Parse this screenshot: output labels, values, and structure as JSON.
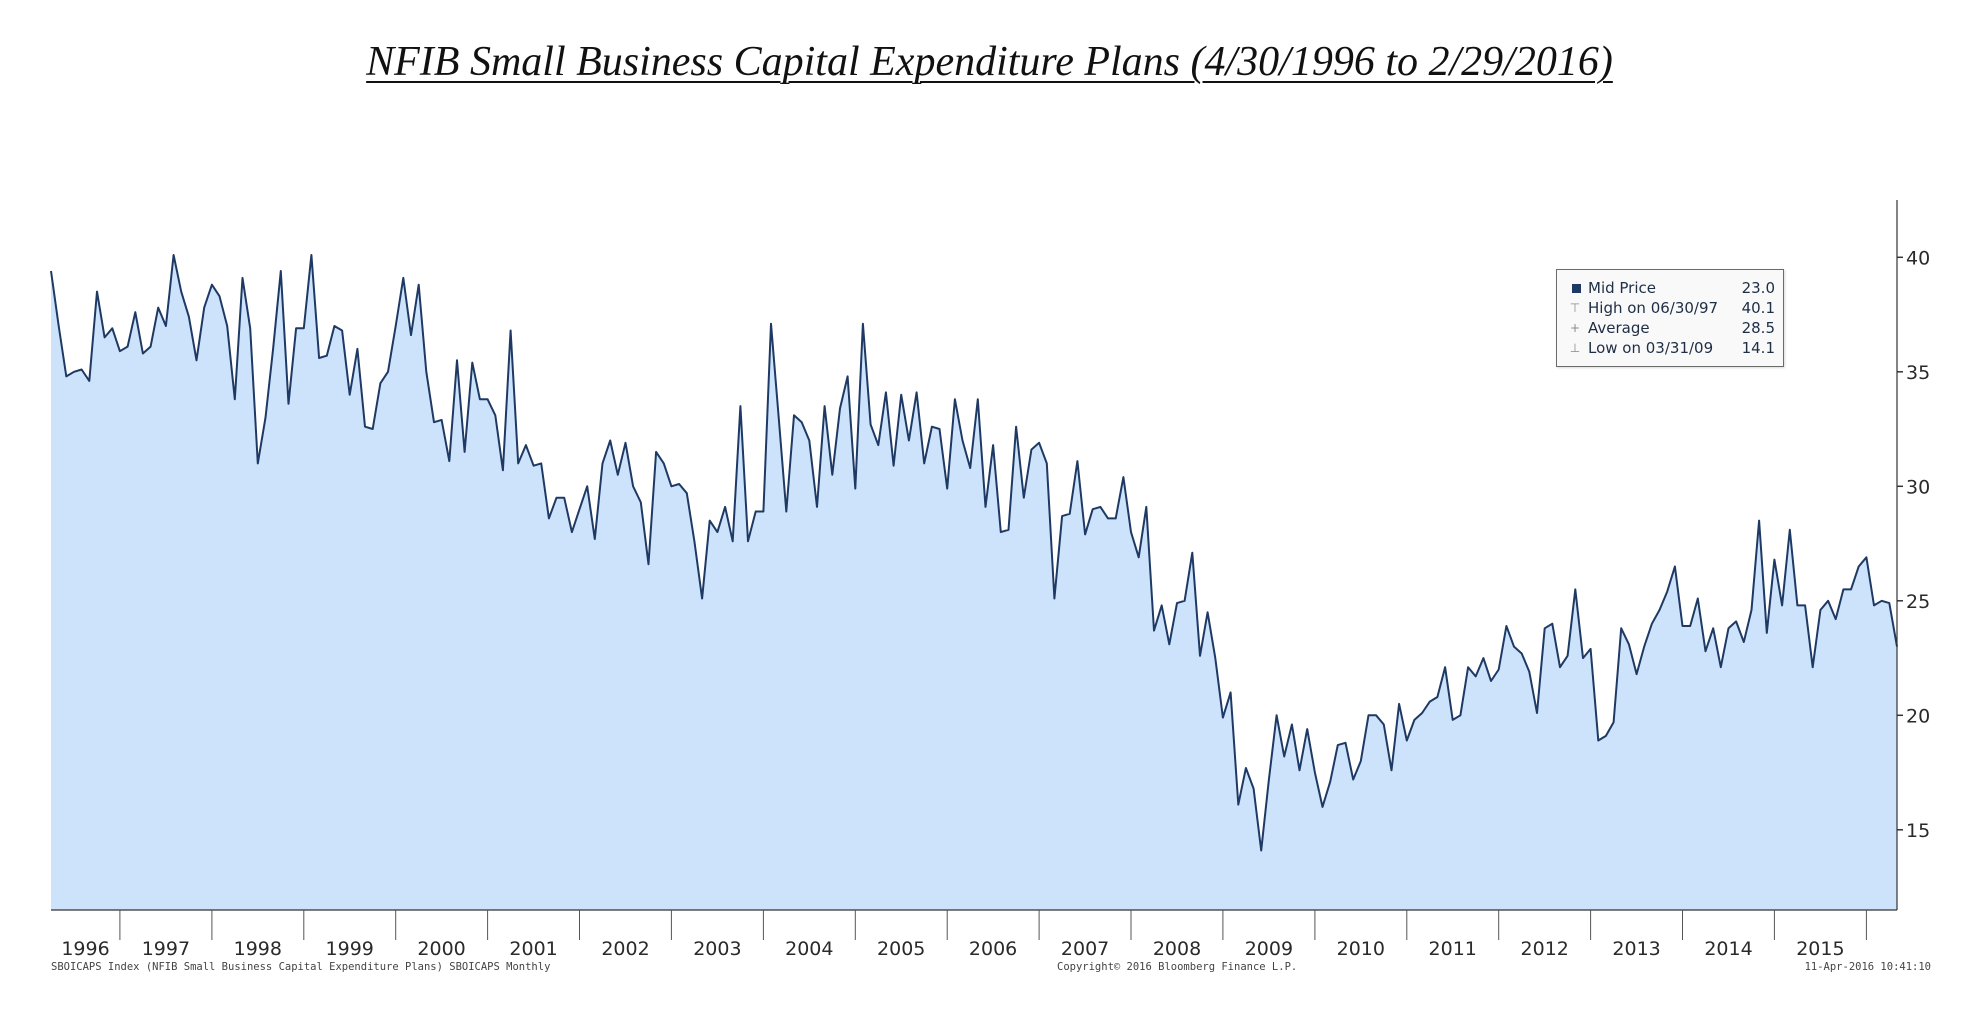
{
  "title": "NFIB Small Business Capital Expenditure Plans (4/30/1996 to 2/29/2016)",
  "footer": {
    "left": "SBOICAPS Index (NFIB Small Business Capital Expenditure Plans) SBOICAPS  Monthly",
    "center": "Copyright© 2016 Bloomberg Finance L.P.",
    "right": "11-Apr-2016 10:41:10"
  },
  "legend": [
    {
      "label": "Mid Price",
      "value": "23.0",
      "marker": "swatch"
    },
    {
      "label": "High on 06/30/97",
      "value": "40.1",
      "marker": "high"
    },
    {
      "label": "Average",
      "value": "28.5",
      "marker": "avg"
    },
    {
      "label": "Low on 03/31/09",
      "value": "14.1",
      "marker": "low"
    }
  ],
  "colors": {
    "line": "#1e3a64",
    "fill": "#cde3fb",
    "axis": "#333333"
  },
  "chart_data": {
    "type": "area",
    "title": "NFIB Small Business Capital Expenditure Plans (4/30/1996 to 2/29/2016)",
    "frequency": "Monthly",
    "x_start": "1996-04",
    "x_end": "2016-02",
    "y_axis_side": "right",
    "ylim": [
      11.5,
      42.5
    ],
    "yticks": [
      15,
      20,
      25,
      30,
      35,
      40
    ],
    "xticks": [
      "1996",
      "1997",
      "1998",
      "1999",
      "2000",
      "2001",
      "2002",
      "2003",
      "2004",
      "2005",
      "2006",
      "2007",
      "2008",
      "2009",
      "2010",
      "2011",
      "2012",
      "2013",
      "2014",
      "2015"
    ],
    "series": [
      {
        "name": "Mid Price",
        "values": [
          39.4,
          37.0,
          34.8,
          35.0,
          35.1,
          34.6,
          38.5,
          36.5,
          36.9,
          35.9,
          36.1,
          37.6,
          35.8,
          36.1,
          37.8,
          37.0,
          40.1,
          38.5,
          37.4,
          35.5,
          37.8,
          38.8,
          38.3,
          37.0,
          33.8,
          39.1,
          36.9,
          31.0,
          33.0,
          36.0,
          39.4,
          33.6,
          36.9,
          36.9,
          40.1,
          35.6,
          35.7,
          37.0,
          36.8,
          34.0,
          36.0,
          32.6,
          32.5,
          34.5,
          35.0,
          37.0,
          39.1,
          36.6,
          38.8,
          35.0,
          32.8,
          32.9,
          31.1,
          35.5,
          31.5,
          35.4,
          33.8,
          33.8,
          33.1,
          30.7,
          36.8,
          31.0,
          31.8,
          30.9,
          31.0,
          28.6,
          29.5,
          29.5,
          28.0,
          29.0,
          30.0,
          27.7,
          31.0,
          32.0,
          30.5,
          31.9,
          30.0,
          29.3,
          26.6,
          31.5,
          31.0,
          30.0,
          30.1,
          29.7,
          27.6,
          25.1,
          28.5,
          28.0,
          29.1,
          27.6,
          33.5,
          27.6,
          28.9,
          28.9,
          37.1,
          33.0,
          28.9,
          33.1,
          32.8,
          32.0,
          29.1,
          33.5,
          30.5,
          33.4,
          34.8,
          29.9,
          37.1,
          32.7,
          31.8,
          34.1,
          30.9,
          34.0,
          32.0,
          34.1,
          31.0,
          32.6,
          32.5,
          29.9,
          33.8,
          32.0,
          30.8,
          33.8,
          29.1,
          31.8,
          28.0,
          28.1,
          32.6,
          29.5,
          31.6,
          31.9,
          31.0,
          25.1,
          28.7,
          28.8,
          31.1,
          27.9,
          29.0,
          29.1,
          28.6,
          28.6,
          30.4,
          28.0,
          26.9,
          29.1,
          23.7,
          24.8,
          23.1,
          24.9,
          25.0,
          27.1,
          22.6,
          24.5,
          22.5,
          19.9,
          21.0,
          16.1,
          17.7,
          16.8,
          14.1,
          17.2,
          20.0,
          18.2,
          19.6,
          17.6,
          19.4,
          17.5,
          16.0,
          17.1,
          18.7,
          18.8,
          17.2,
          18.0,
          20.0,
          20.0,
          19.6,
          17.6,
          20.5,
          18.9,
          19.8,
          20.1,
          20.6,
          20.8,
          22.1,
          19.8,
          20.0,
          22.1,
          21.7,
          22.5,
          21.5,
          22.0,
          23.9,
          23.0,
          22.7,
          21.9,
          20.1,
          23.8,
          24.0,
          22.1,
          22.6,
          25.5,
          22.5,
          22.9,
          18.9,
          19.1,
          19.7,
          23.8,
          23.1,
          21.8,
          23.0,
          24.0,
          24.6,
          25.4,
          26.5,
          23.9,
          23.9,
          25.1,
          22.8,
          23.8,
          22.1,
          23.8,
          24.1,
          23.2,
          24.6,
          28.5,
          23.6,
          26.8,
          24.8,
          28.1,
          24.8,
          24.8,
          22.1,
          24.6,
          25.0,
          24.2,
          25.5,
          25.5,
          26.5,
          26.9,
          24.8,
          25.0,
          24.9,
          23.0
        ]
      }
    ],
    "legend_position": "top-right",
    "grid": false
  }
}
